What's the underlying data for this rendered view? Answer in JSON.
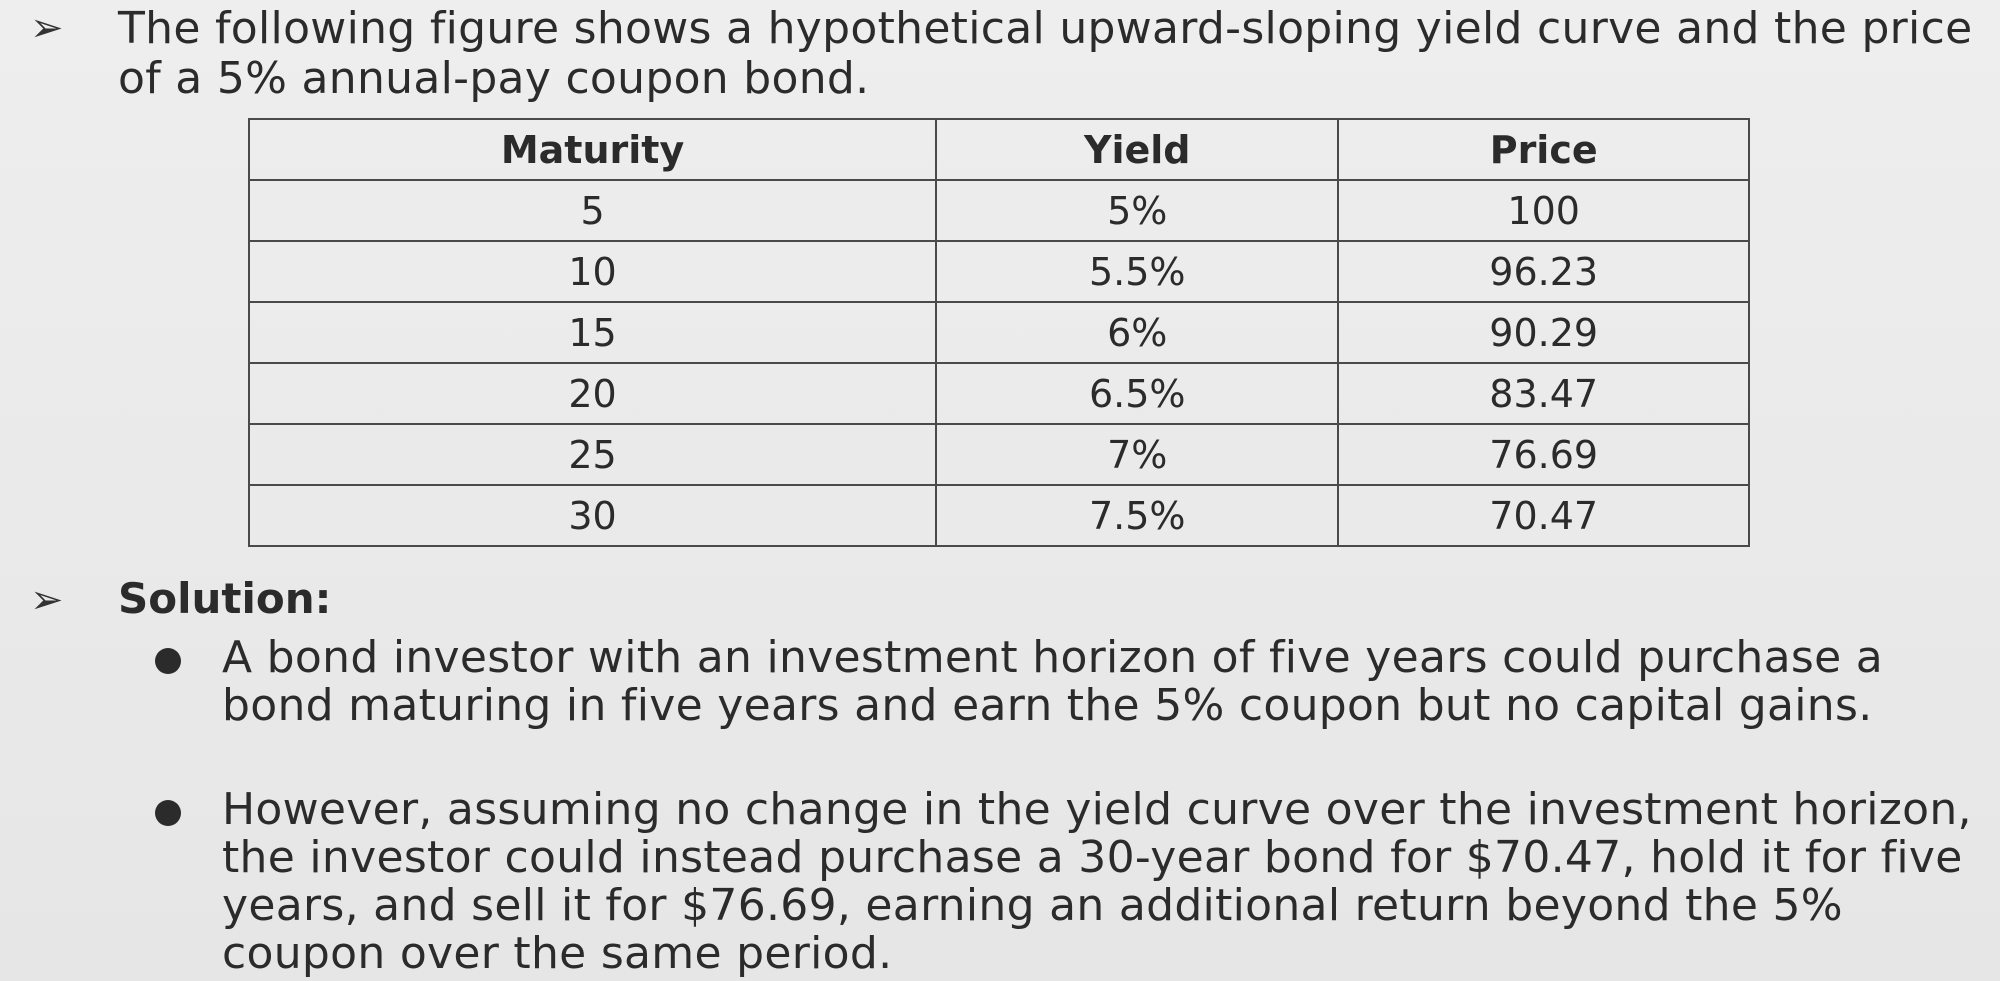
{
  "intro": {
    "text": "The following figure shows a hypothetical upward-sloping yield curve and the price of a 5% annual-pay coupon bond."
  },
  "table": {
    "headers": [
      "Maturity",
      "Yield",
      "Price"
    ],
    "rows": [
      [
        "5",
        "5%",
        "100"
      ],
      [
        "10",
        "5.5%",
        "96.23"
      ],
      [
        "15",
        "6%",
        "90.29"
      ],
      [
        "20",
        "6.5%",
        "83.47"
      ],
      [
        "25",
        "7%",
        "76.69"
      ],
      [
        "30",
        "7.5%",
        "70.47"
      ]
    ]
  },
  "solution": {
    "heading": "Solution:",
    "points": [
      "A bond investor with an investment horizon of five years could purchase a bond maturing in five years and earn the 5% coupon but no capital gains.",
      "However, assuming no change in the yield curve over the investment horizon, the investor could instead purchase a 30-year bond for $70.47, hold it for five years, and sell it for $76.69, earning an additional return beyond the 5% coupon over the same period."
    ]
  },
  "bullet_glyphs": {
    "arrow": "➢"
  }
}
